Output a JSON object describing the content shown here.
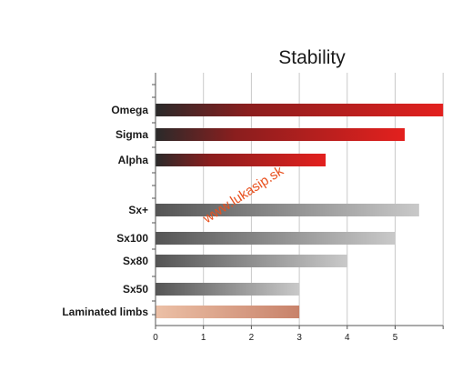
{
  "chart_data": {
    "type": "bar",
    "orientation": "horizontal",
    "title": "Stability",
    "categories": [
      "Omega",
      "Sigma",
      "Alpha",
      "Sx+",
      "Sx100",
      "Sx80",
      "Sx50",
      "Laminated limbs"
    ],
    "values": [
      6.0,
      5.2,
      3.55,
      5.5,
      5.0,
      4.0,
      3.0,
      3.0
    ],
    "groups": [
      "red",
      "red",
      "red",
      "gray",
      "gray",
      "gray",
      "gray",
      "laminated"
    ],
    "xlim": [
      0,
      6
    ],
    "xticks": [
      "0",
      "1",
      "2",
      "3",
      "4",
      "5"
    ],
    "grid": true,
    "xlabel": "",
    "ylabel": ""
  },
  "colors": {
    "red_start": "#2a2a2a",
    "red_end": "#e3201e",
    "gray_start": "#555555",
    "gray_end": "#c9c9c9",
    "laminated_start": "#ecc0a6",
    "laminated_end": "#c8826a",
    "grid": "#c9c9c9",
    "axis": "#555555",
    "watermark": "#e8501e"
  },
  "watermark": "www.lukasip.sk"
}
